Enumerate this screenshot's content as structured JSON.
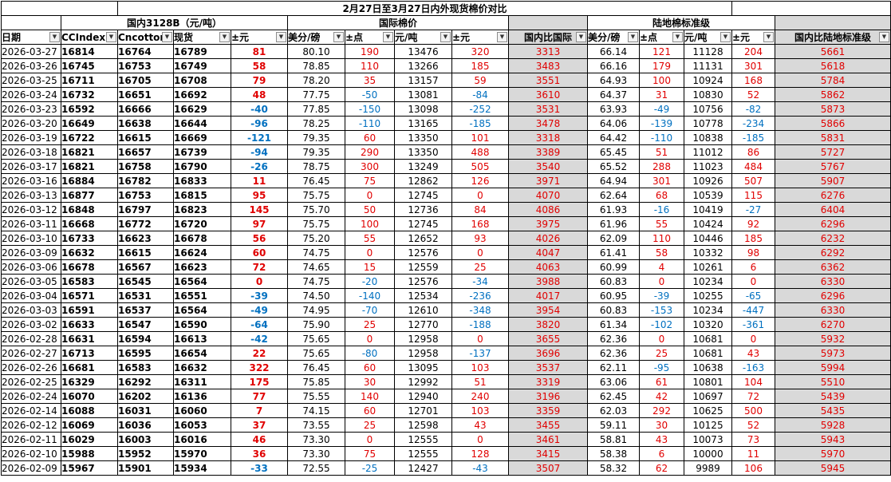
{
  "title": "2月27日至3月27日内外现货棉价对比",
  "groups": {
    "domestic": "国内3128B（元/吨）",
    "intl": "国际棉价",
    "land": "陆地棉标准级"
  },
  "headers": [
    "日期",
    "CCIndex",
    "Cncotton",
    "现货",
    "±元",
    "美分/磅",
    "±点",
    "元/吨",
    "±元",
    "国内比国际",
    "美分/磅",
    "±点",
    "元/吨",
    "±元",
    "国内比陆地标准级"
  ],
  "rows": [
    [
      "2026-03-27",
      "16814",
      "16764",
      "16789",
      "81",
      "80.10",
      "190",
      "13476",
      "320",
      "3313",
      "66.14",
      "121",
      "11128",
      "204",
      "5661"
    ],
    [
      "2026-03-26",
      "16745",
      "16753",
      "16749",
      "58",
      "78.85",
      "110",
      "13266",
      "185",
      "3483",
      "66.16",
      "179",
      "11131",
      "301",
      "5618"
    ],
    [
      "2026-03-25",
      "16711",
      "16705",
      "16708",
      "79",
      "78.20",
      "35",
      "13157",
      "59",
      "3551",
      "64.93",
      "100",
      "10924",
      "168",
      "5784"
    ],
    [
      "2026-03-24",
      "16732",
      "16651",
      "16692",
      "48",
      "77.75",
      "-50",
      "13081",
      "-84",
      "3610",
      "64.37",
      "31",
      "10830",
      "52",
      "5862"
    ],
    [
      "2026-03-23",
      "16592",
      "16666",
      "16629",
      "-40",
      "77.85",
      "-150",
      "13098",
      "-252",
      "3531",
      "63.93",
      "-49",
      "10756",
      "-82",
      "5873"
    ],
    [
      "2026-03-20",
      "16649",
      "16638",
      "16644",
      "-96",
      "78.25",
      "-110",
      "13165",
      "-185",
      "3478",
      "64.06",
      "-139",
      "10778",
      "-234",
      "5866"
    ],
    [
      "2026-03-19",
      "16722",
      "16615",
      "16669",
      "-121",
      "79.35",
      "60",
      "13350",
      "101",
      "3318",
      "64.42",
      "-110",
      "10838",
      "-185",
      "5831"
    ],
    [
      "2026-03-18",
      "16821",
      "16657",
      "16739",
      "-94",
      "79.35",
      "290",
      "13350",
      "488",
      "3389",
      "65.45",
      "51",
      "11012",
      "86",
      "5727"
    ],
    [
      "2026-03-17",
      "16821",
      "16758",
      "16790",
      "-26",
      "78.75",
      "300",
      "13249",
      "505",
      "3540",
      "65.52",
      "288",
      "11023",
      "484",
      "5767"
    ],
    [
      "2026-03-16",
      "16884",
      "16782",
      "16833",
      "11",
      "76.45",
      "75",
      "12862",
      "126",
      "3971",
      "64.94",
      "301",
      "10926",
      "507",
      "5907"
    ],
    [
      "2026-03-13",
      "16877",
      "16753",
      "16815",
      "95",
      "75.75",
      "0",
      "12745",
      "0",
      "4070",
      "62.64",
      "68",
      "10539",
      "115",
      "6276"
    ],
    [
      "2026-03-12",
      "16848",
      "16797",
      "16823",
      "145",
      "75.70",
      "50",
      "12736",
      "84",
      "4086",
      "61.93",
      "-16",
      "10419",
      "-27",
      "6404"
    ],
    [
      "2026-03-11",
      "16668",
      "16772",
      "16720",
      "97",
      "75.75",
      "100",
      "12745",
      "168",
      "3975",
      "61.96",
      "55",
      "10424",
      "92",
      "6296"
    ],
    [
      "2026-03-10",
      "16733",
      "16623",
      "16678",
      "56",
      "75.20",
      "55",
      "12652",
      "93",
      "4026",
      "62.09",
      "110",
      "10446",
      "185",
      "6232"
    ],
    [
      "2026-03-09",
      "16632",
      "16615",
      "16624",
      "60",
      "74.75",
      "0",
      "12576",
      "0",
      "4047",
      "61.41",
      "58",
      "10332",
      "98",
      "6292"
    ],
    [
      "2026-03-06",
      "16678",
      "16567",
      "16623",
      "72",
      "74.65",
      "15",
      "12559",
      "25",
      "4063",
      "60.99",
      "4",
      "10261",
      "6",
      "6362"
    ],
    [
      "2026-03-05",
      "16583",
      "16545",
      "16564",
      "0",
      "74.75",
      "-20",
      "12576",
      "-34",
      "3988",
      "60.83",
      "0",
      "10234",
      "0",
      "6330"
    ],
    [
      "2026-03-04",
      "16571",
      "16531",
      "16551",
      "-39",
      "74.50",
      "-140",
      "12534",
      "-236",
      "4017",
      "60.95",
      "-39",
      "10255",
      "-65",
      "6296"
    ],
    [
      "2026-03-03",
      "16591",
      "16537",
      "16564",
      "-49",
      "74.95",
      "-70",
      "12610",
      "-348",
      "3954",
      "60.83",
      "-153",
      "10234",
      "-447",
      "6330"
    ],
    [
      "2026-03-02",
      "16633",
      "16547",
      "16590",
      "-64",
      "75.90",
      "25",
      "12770",
      "-188",
      "3820",
      "61.34",
      "-102",
      "10320",
      "-361",
      "6270"
    ],
    [
      "2026-02-28",
      "16631",
      "16594",
      "16613",
      "-42",
      "75.65",
      "0",
      "12958",
      "0",
      "3655",
      "62.36",
      "0",
      "10681",
      "0",
      "5932"
    ],
    [
      "2026-02-27",
      "16713",
      "16595",
      "16654",
      "22",
      "75.65",
      "-80",
      "12958",
      "-137",
      "3696",
      "62.36",
      "25",
      "10681",
      "43",
      "5973"
    ],
    [
      "2026-02-26",
      "16681",
      "16583",
      "16632",
      "322",
      "76.45",
      "60",
      "13095",
      "103",
      "3537",
      "62.11",
      "-95",
      "10638",
      "-163",
      "5994"
    ],
    [
      "2026-02-25",
      "16329",
      "16292",
      "16311",
      "175",
      "75.85",
      "30",
      "12992",
      "51",
      "3319",
      "63.06",
      "61",
      "10801",
      "104",
      "5510"
    ],
    [
      "2026-02-24",
      "16070",
      "16202",
      "16136",
      "77",
      "75.55",
      "140",
      "12940",
      "240",
      "3196",
      "62.45",
      "42",
      "10697",
      "72",
      "5439"
    ],
    [
      "2026-02-14",
      "16088",
      "16031",
      "16060",
      "7",
      "74.15",
      "60",
      "12701",
      "103",
      "3359",
      "62.03",
      "292",
      "10625",
      "500",
      "5435"
    ],
    [
      "2026-02-12",
      "16069",
      "16036",
      "16053",
      "37",
      "73.55",
      "25",
      "12598",
      "43",
      "3455",
      "59.11",
      "30",
      "10125",
      "52",
      "5928"
    ],
    [
      "2026-02-11",
      "16029",
      "16003",
      "16016",
      "46",
      "73.30",
      "0",
      "12555",
      "0",
      "3461",
      "58.81",
      "43",
      "10073",
      "73",
      "5943"
    ],
    [
      "2026-02-10",
      "15988",
      "15952",
      "15970",
      "36",
      "73.30",
      "75",
      "12555",
      "128",
      "3415",
      "58.38",
      "6",
      "10000",
      "11",
      "5970"
    ],
    [
      "2026-02-09",
      "15967",
      "15901",
      "15934",
      "-33",
      "72.55",
      "-25",
      "12427",
      "-43",
      "3507",
      "58.32",
      "62",
      "9989",
      "106",
      "5945"
    ]
  ],
  "colors": {
    "positive": "#e00000",
    "negative": "#0070c0",
    "shade": "#d9d9d9"
  },
  "icons": {
    "filter": "filter-dropdown-icon"
  }
}
